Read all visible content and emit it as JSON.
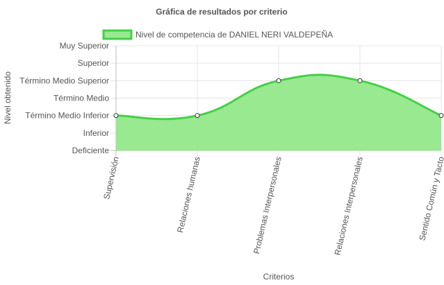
{
  "chart_data": {
    "type": "area",
    "title": "Gráfica de resultados por criterio",
    "xlabel": "Criterios",
    "ylabel": "Nivel obtenido",
    "levels": [
      "Deficiente",
      "Inferior",
      "Término Medio Inferior",
      "Término Medio",
      "Término Medio Superior",
      "Superior",
      "Muy Superior"
    ],
    "categories": [
      "Supervisión",
      "Relaciones humanas",
      "Problemas Interpersonales",
      "Relaciones Interpersonales",
      "Sentido Común y Tacto"
    ],
    "series": [
      {
        "name": "Nivel de competencia de DANIEL NERI VALDEPEÑA",
        "values": [
          "Término Medio Inferior",
          "Término Medio Inferior",
          "Término Medio Superior",
          "Término Medio Superior",
          "Término Medio Inferior"
        ]
      }
    ],
    "legend": "top",
    "grid": true,
    "colors": {
      "fill": "#98e98f",
      "stroke": "#45d046",
      "point_fill": "#ffffff",
      "point_stroke": "#333333",
      "grid": "#e5e5e5"
    }
  }
}
